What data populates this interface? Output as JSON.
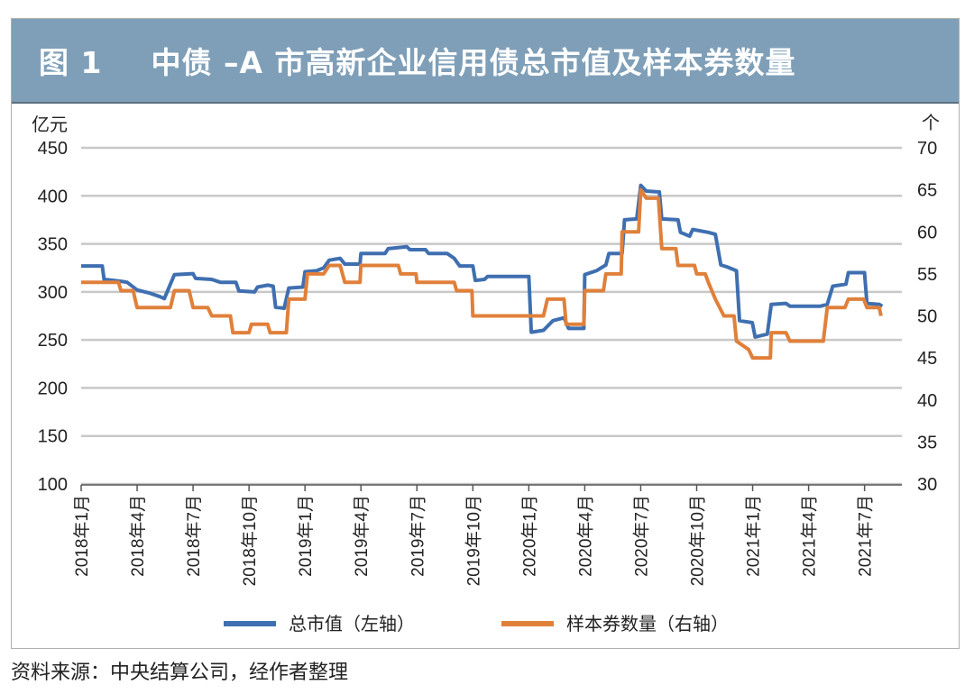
{
  "figure": {
    "label": "图 1",
    "title": "中债 –A 市高新企业信用债总市值及样本券数量",
    "source": "资料来源：中央结算公司，经作者整理"
  },
  "colors": {
    "header_bg": "#7f9fb8",
    "series_market_value": "#3f6fb0",
    "series_count": "#e0803a",
    "grid": "#c8c8c8"
  },
  "chart_data": {
    "type": "line",
    "left_axis": {
      "unit": "亿元",
      "ylim": [
        100,
        450
      ],
      "ticks": [
        100,
        150,
        200,
        250,
        300,
        350,
        400,
        450
      ]
    },
    "right_axis": {
      "unit": "个",
      "ylim": [
        30,
        70
      ],
      "ticks": [
        30,
        35,
        40,
        45,
        50,
        55,
        60,
        65,
        70
      ]
    },
    "x_range": [
      "2018-01",
      "2021-09"
    ],
    "x_ticks": [
      "2018年1月",
      "2018年4月",
      "2018年7月",
      "2018年10月",
      "2019年1月",
      "2019年4月",
      "2019年7月",
      "2019年10月",
      "2020年1月",
      "2020年4月",
      "2020年7月",
      "2020年10月",
      "2021年1月",
      "2021年4月",
      "2021年7月"
    ],
    "grid": true,
    "legend_position": "bottom",
    "series": [
      {
        "name": "总市值（左轴）",
        "axis": "left",
        "color": "#3f6fb0",
        "points": [
          [
            "2018-01-01",
            327
          ],
          [
            "2018-02-05",
            327
          ],
          [
            "2018-02-08",
            313
          ],
          [
            "2018-03-05",
            311
          ],
          [
            "2018-03-15",
            310
          ],
          [
            "2018-04-01",
            302
          ],
          [
            "2018-04-20",
            299
          ],
          [
            "2018-05-08",
            295
          ],
          [
            "2018-05-15",
            293
          ],
          [
            "2018-06-01",
            318
          ],
          [
            "2018-07-01",
            319
          ],
          [
            "2018-07-05",
            314
          ],
          [
            "2018-08-01",
            313
          ],
          [
            "2018-08-15",
            310
          ],
          [
            "2018-09-10",
            310
          ],
          [
            "2018-09-15",
            301
          ],
          [
            "2018-10-10",
            300
          ],
          [
            "2018-10-15",
            305
          ],
          [
            "2018-11-01",
            307
          ],
          [
            "2018-11-10",
            306
          ],
          [
            "2018-11-14",
            284
          ],
          [
            "2018-11-28",
            283
          ],
          [
            "2018-12-05",
            304
          ],
          [
            "2018-12-28",
            305
          ],
          [
            "2019-01-01",
            321
          ],
          [
            "2019-01-20",
            322
          ],
          [
            "2019-02-01",
            325
          ],
          [
            "2019-02-10",
            333
          ],
          [
            "2019-02-28",
            335
          ],
          [
            "2019-03-05",
            329
          ],
          [
            "2019-03-30",
            329
          ],
          [
            "2019-04-01",
            340
          ],
          [
            "2019-05-10",
            340
          ],
          [
            "2019-05-15",
            345
          ],
          [
            "2019-06-15",
            347
          ],
          [
            "2019-06-20",
            344
          ],
          [
            "2019-07-15",
            344
          ],
          [
            "2019-07-20",
            340
          ],
          [
            "2019-08-20",
            340
          ],
          [
            "2019-09-01",
            335
          ],
          [
            "2019-09-10",
            327
          ],
          [
            "2019-10-01",
            327
          ],
          [
            "2019-10-05",
            312
          ],
          [
            "2019-10-20",
            313
          ],
          [
            "2019-10-25",
            316
          ],
          [
            "2019-12-15",
            316
          ],
          [
            "2020-01-01",
            316
          ],
          [
            "2020-01-05",
            258
          ],
          [
            "2020-01-25",
            260
          ],
          [
            "2020-02-10",
            270
          ],
          [
            "2020-02-28",
            273
          ],
          [
            "2020-03-05",
            262
          ],
          [
            "2020-03-30",
            262
          ],
          [
            "2020-04-01",
            318
          ],
          [
            "2020-04-20",
            322
          ],
          [
            "2020-05-05",
            328
          ],
          [
            "2020-05-10",
            340
          ],
          [
            "2020-06-01",
            340
          ],
          [
            "2020-06-05",
            375
          ],
          [
            "2020-06-25",
            376
          ],
          [
            "2020-07-01",
            411
          ],
          [
            "2020-07-10",
            405
          ],
          [
            "2020-08-01",
            404
          ],
          [
            "2020-08-05",
            376
          ],
          [
            "2020-09-01",
            375
          ],
          [
            "2020-09-05",
            362
          ],
          [
            "2020-09-20",
            358
          ],
          [
            "2020-09-25",
            365
          ],
          [
            "2020-10-20",
            362
          ],
          [
            "2020-11-01",
            360
          ],
          [
            "2020-11-10",
            328
          ],
          [
            "2020-11-20",
            326
          ],
          [
            "2020-12-05",
            322
          ],
          [
            "2020-12-10",
            270
          ],
          [
            "2020-12-31",
            268
          ],
          [
            "2021-01-05",
            253
          ],
          [
            "2021-01-25",
            256
          ],
          [
            "2021-02-01",
            287
          ],
          [
            "2021-02-25",
            288
          ],
          [
            "2021-03-01",
            285
          ],
          [
            "2021-04-20",
            285
          ],
          [
            "2021-05-01",
            287
          ],
          [
            "2021-05-10",
            306
          ],
          [
            "2021-06-01",
            308
          ],
          [
            "2021-06-05",
            320
          ],
          [
            "2021-07-01",
            320
          ],
          [
            "2021-07-05",
            288
          ],
          [
            "2021-07-25",
            287
          ],
          [
            "2021-07-30",
            285
          ]
        ]
      },
      {
        "name": "样本券数量（右轴）",
        "axis": "right",
        "color": "#e0803a",
        "points": [
          [
            "2018-01-01",
            54
          ],
          [
            "2018-03-01",
            54
          ],
          [
            "2018-03-05",
            53
          ],
          [
            "2018-03-25",
            53
          ],
          [
            "2018-04-01",
            51
          ],
          [
            "2018-05-25",
            51
          ],
          [
            "2018-06-01",
            53
          ],
          [
            "2018-06-25",
            53
          ],
          [
            "2018-07-01",
            51
          ],
          [
            "2018-07-25",
            51
          ],
          [
            "2018-08-01",
            50
          ],
          [
            "2018-09-01",
            50
          ],
          [
            "2018-09-05",
            48
          ],
          [
            "2018-10-01",
            48
          ],
          [
            "2018-10-05",
            49
          ],
          [
            "2018-11-01",
            49
          ],
          [
            "2018-11-05",
            48
          ],
          [
            "2018-12-01",
            48
          ],
          [
            "2018-12-05",
            52
          ],
          [
            "2019-01-01",
            52
          ],
          [
            "2019-01-05",
            55
          ],
          [
            "2019-02-01",
            55
          ],
          [
            "2019-02-10",
            56
          ],
          [
            "2019-02-28",
            56
          ],
          [
            "2019-03-05",
            54
          ],
          [
            "2019-03-30",
            54
          ],
          [
            "2019-04-01",
            56
          ],
          [
            "2019-06-01",
            56
          ],
          [
            "2019-06-05",
            55
          ],
          [
            "2019-06-30",
            55
          ],
          [
            "2019-07-01",
            54
          ],
          [
            "2019-09-01",
            54
          ],
          [
            "2019-09-05",
            53
          ],
          [
            "2019-09-30",
            53
          ],
          [
            "2019-10-01",
            50
          ],
          [
            "2019-12-31",
            50
          ],
          [
            "2020-01-05",
            50
          ],
          [
            "2020-01-25",
            50
          ],
          [
            "2020-02-01",
            52
          ],
          [
            "2020-02-28",
            52
          ],
          [
            "2020-03-01",
            49
          ],
          [
            "2020-03-30",
            49
          ],
          [
            "2020-04-01",
            53
          ],
          [
            "2020-05-01",
            53
          ],
          [
            "2020-05-05",
            55
          ],
          [
            "2020-05-30",
            55
          ],
          [
            "2020-06-01",
            60
          ],
          [
            "2020-06-28",
            60
          ],
          [
            "2020-07-01",
            65
          ],
          [
            "2020-07-10",
            64
          ],
          [
            "2020-07-30",
            64
          ],
          [
            "2020-08-05",
            58
          ],
          [
            "2020-08-28",
            58
          ],
          [
            "2020-09-01",
            56
          ],
          [
            "2020-09-28",
            56
          ],
          [
            "2020-10-01",
            55
          ],
          [
            "2020-10-15",
            55
          ],
          [
            "2020-10-20",
            54
          ],
          [
            "2020-11-01",
            52
          ],
          [
            "2020-11-15",
            50
          ],
          [
            "2020-12-01",
            50
          ],
          [
            "2020-12-05",
            47
          ],
          [
            "2020-12-25",
            46
          ],
          [
            "2021-01-01",
            45
          ],
          [
            "2021-01-30",
            45
          ],
          [
            "2021-02-01",
            48
          ],
          [
            "2021-02-25",
            48
          ],
          [
            "2021-03-01",
            47
          ],
          [
            "2021-04-25",
            47
          ],
          [
            "2021-05-01",
            51
          ],
          [
            "2021-05-30",
            51
          ],
          [
            "2021-06-05",
            52
          ],
          [
            "2021-06-30",
            52
          ],
          [
            "2021-07-05",
            51
          ],
          [
            "2021-07-25",
            51
          ],
          [
            "2021-07-28",
            50
          ]
        ]
      }
    ]
  }
}
